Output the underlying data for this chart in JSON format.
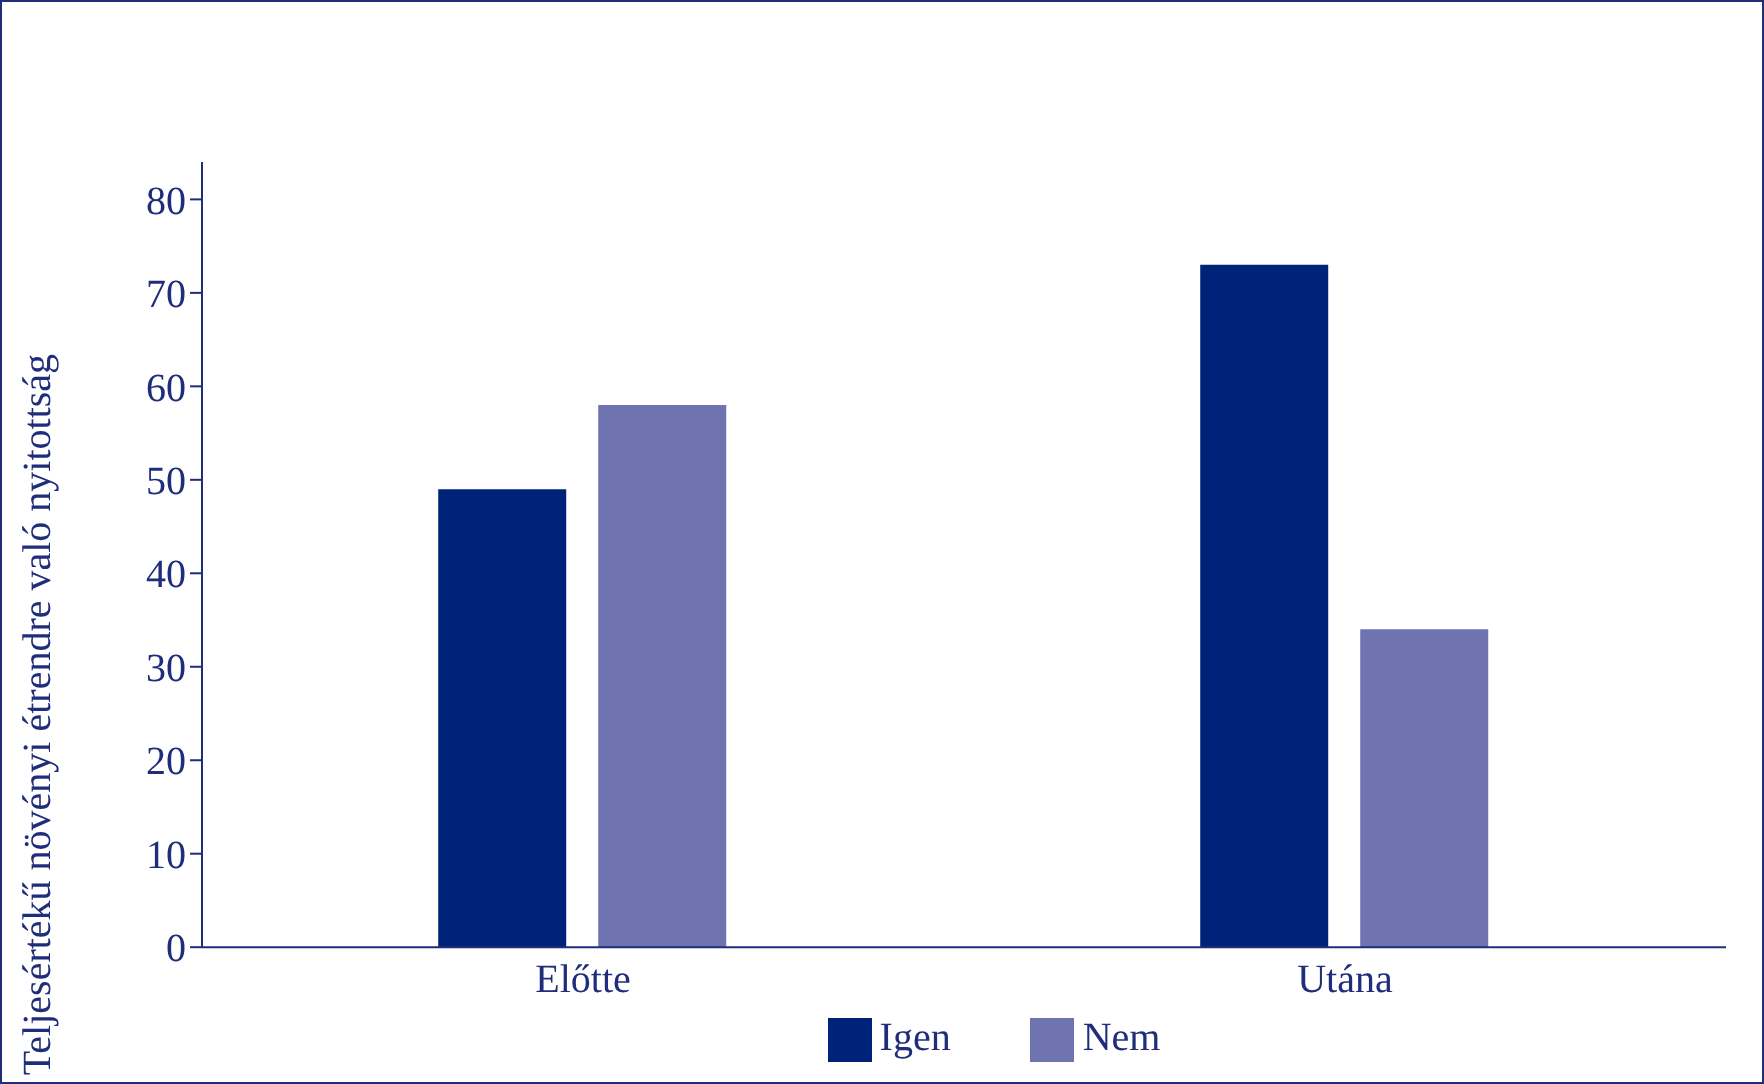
{
  "chart_data": {
    "type": "bar",
    "ylabel": "Teljesértékű növényi étrendre való nyitottság",
    "categories": [
      "Előtte",
      "Utána"
    ],
    "series": [
      {
        "name": "Igen",
        "color": "#00237a",
        "values": [
          49,
          73
        ]
      },
      {
        "name": "Nem",
        "color": "#6f74b0",
        "values": [
          58,
          34
        ]
      }
    ],
    "ylim": [
      0,
      84
    ],
    "yticks": [
      0,
      10,
      20,
      30,
      40,
      50,
      60,
      70,
      80
    ],
    "grid": false,
    "legend": "bottom"
  }
}
